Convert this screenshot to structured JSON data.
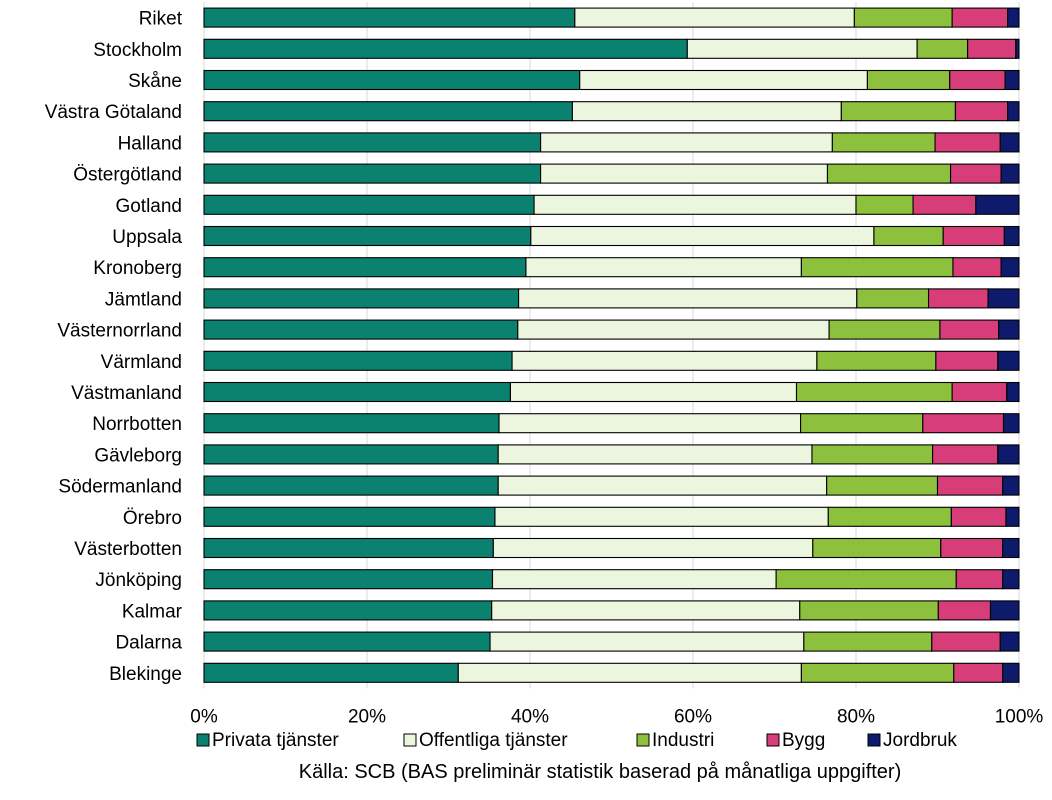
{
  "chart_data": {
    "type": "bar",
    "orientation": "horizontal",
    "stacked": "percent",
    "categories": [
      "Riket",
      "Stockholm",
      "Skåne",
      "Västra Götaland",
      "Halland",
      "Östergötland",
      "Gotland",
      "Uppsala",
      "Kronoberg",
      "Jämtland",
      "Västernorrland",
      "Värmland",
      "Västmanland",
      "Norrbotten",
      "Gävleborg",
      "Södermanland",
      "Örebro ",
      "Västerbotten",
      "Jönköping",
      "Kalmar",
      "Dalarna",
      "Blekinge"
    ],
    "series": [
      {
        "name": "Privata tjänster",
        "color": "#0B8170",
        "values": [
          45.5,
          59.3,
          46.1,
          45.2,
          41.3,
          41.3,
          40.5,
          40.1,
          39.5,
          38.6,
          38.5,
          37.8,
          37.6,
          36.2,
          36.1,
          36.1,
          35.7,
          35.5,
          35.4,
          35.3,
          35.1,
          31.2
        ]
      },
      {
        "name": "Offentliga tjänster",
        "color": "#ECF5DD",
        "values": [
          34.3,
          28.2,
          35.3,
          33.0,
          35.8,
          35.2,
          39.5,
          42.1,
          33.8,
          41.5,
          38.2,
          37.4,
          35.1,
          37.0,
          38.5,
          40.3,
          40.9,
          39.2,
          34.8,
          37.8,
          38.5,
          42.1
        ]
      },
      {
        "name": "Industri",
        "color": "#8DC03C",
        "values": [
          12.0,
          6.2,
          10.1,
          14.0,
          12.6,
          15.1,
          7.0,
          8.5,
          18.6,
          8.8,
          13.6,
          14.6,
          19.1,
          15.0,
          14.8,
          13.6,
          15.1,
          15.7,
          22.1,
          17.0,
          15.7,
          18.7
        ]
      },
      {
        "name": "Bygg",
        "color": "#D63D79",
        "values": [
          6.8,
          5.9,
          6.8,
          6.4,
          8.0,
          6.2,
          7.7,
          7.5,
          5.9,
          7.3,
          7.2,
          7.6,
          6.7,
          9.9,
          8.0,
          8.0,
          6.7,
          7.6,
          5.7,
          6.4,
          8.4,
          6.0
        ]
      },
      {
        "name": "Jordbruk",
        "color": "#0E1A6B",
        "values": [
          1.4,
          0.4,
          1.7,
          1.4,
          2.3,
          2.2,
          5.3,
          1.8,
          2.2,
          3.8,
          2.5,
          2.6,
          1.5,
          1.9,
          2.6,
          2.0,
          1.6,
          2.0,
          2.0,
          3.5,
          2.3,
          2.0
        ]
      }
    ],
    "xlim": [
      0,
      100
    ],
    "xticks": [
      "0%",
      "20%",
      "40%",
      "60%",
      "80%",
      "100%"
    ],
    "grid": true,
    "legend_position": "bottom",
    "source": "Källa: SCB (BAS preliminär statistik baserad på månatliga uppgifter)"
  }
}
